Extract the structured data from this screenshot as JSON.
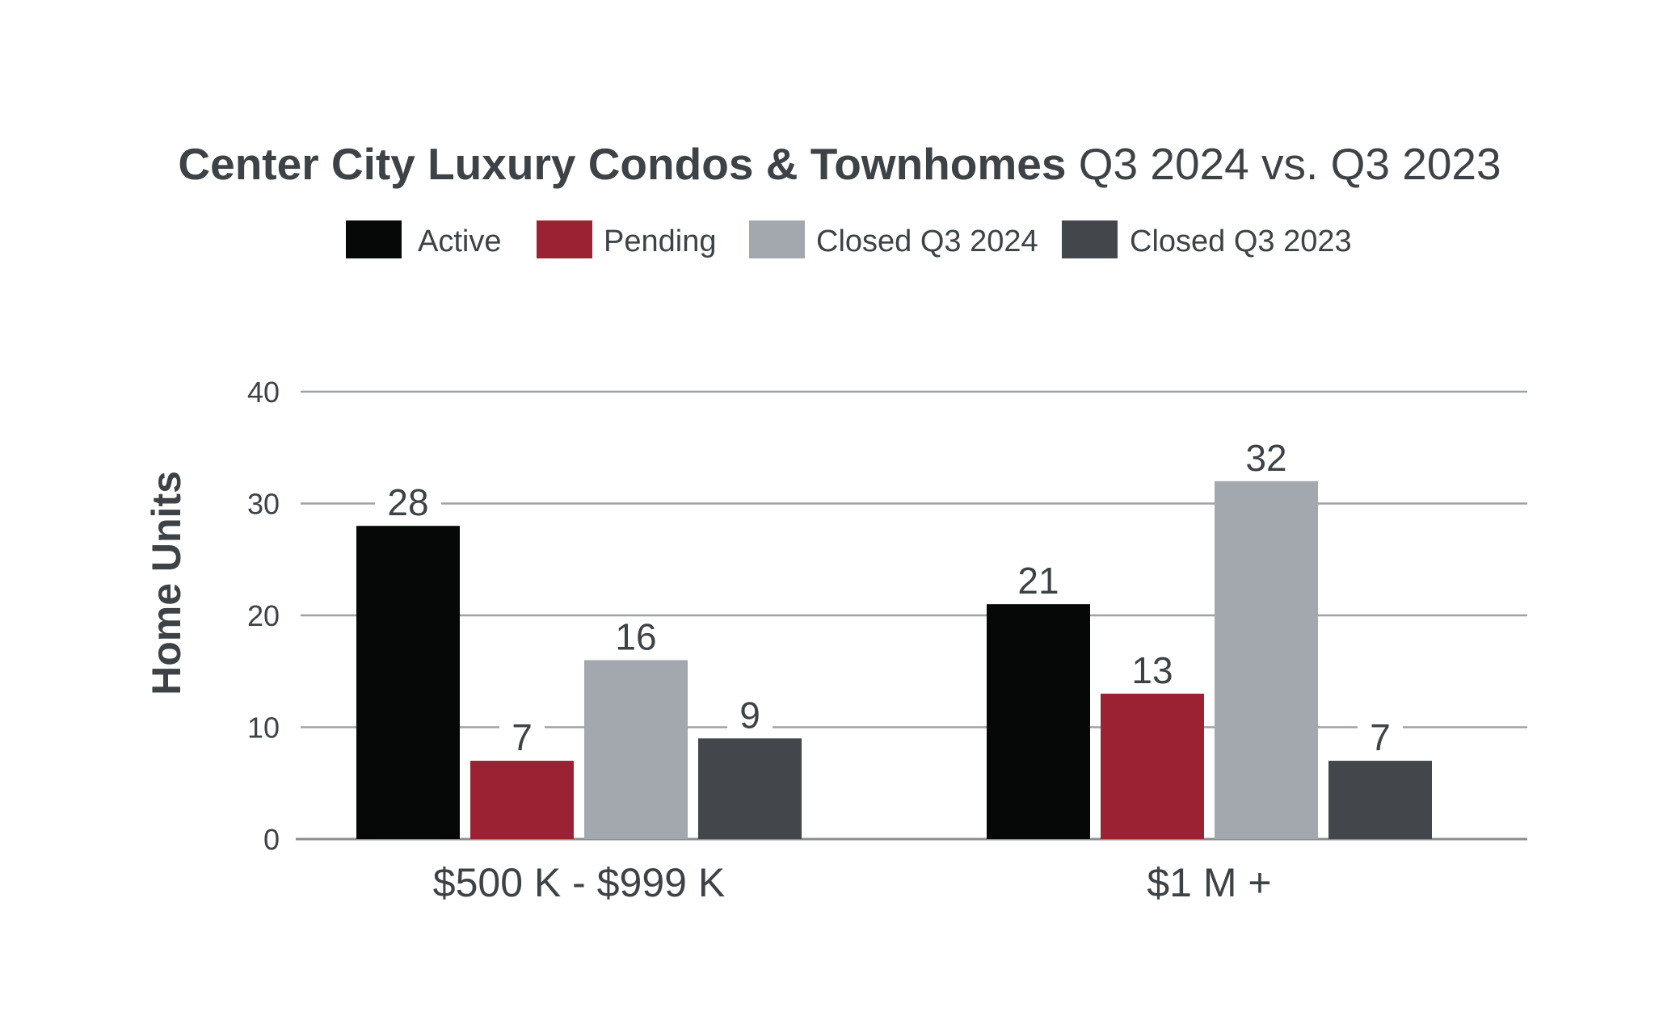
{
  "chart_data": {
    "type": "bar",
    "title_bold": "Center City Luxury Condos & Townhomes",
    "title_regular": " Q3 2024 vs. Q3 2023",
    "ylabel": "Home Units",
    "xlabel": "",
    "ylim": [
      0,
      40
    ],
    "yticks": [
      0,
      10,
      20,
      30,
      40
    ],
    "grid": true,
    "legend_position": "top-center",
    "categories": [
      "$500 K - $999 K",
      "$1 M +"
    ],
    "series": [
      {
        "name": "Active",
        "color": "#060808",
        "values": [
          28,
          21
        ]
      },
      {
        "name": "Pending",
        "color": "#9b2232",
        "values": [
          7,
          13
        ]
      },
      {
        "name": "Closed Q3 2024",
        "color": "#a2a8ad",
        "values": [
          16,
          32
        ]
      },
      {
        "name": "Closed Q3 2023",
        "color": "#43474b",
        "values": [
          9,
          7
        ]
      }
    ]
  }
}
